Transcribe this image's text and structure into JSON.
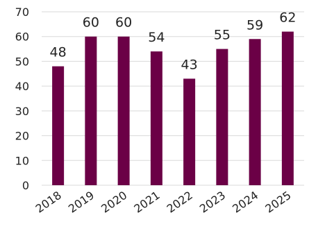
{
  "chart_data": {
    "type": "bar",
    "title": "",
    "xlabel": "",
    "ylabel": "",
    "categories": [
      "2018",
      "2019",
      "2020",
      "2021",
      "2022",
      "2023",
      "2024",
      "2025"
    ],
    "values": [
      48,
      60,
      60,
      54,
      43,
      55,
      59,
      62
    ],
    "ylim": [
      0,
      70
    ],
    "yticks": [
      "0",
      "10",
      "20",
      "30",
      "40",
      "50",
      "60",
      "70"
    ],
    "data_labels": [
      "48",
      "60",
      "60",
      "54",
      "43",
      "55",
      "59",
      "62"
    ],
    "grid": true,
    "legend": "none",
    "colors": {
      "bar": "#6b0046",
      "grid": "#d9d9d9"
    }
  }
}
